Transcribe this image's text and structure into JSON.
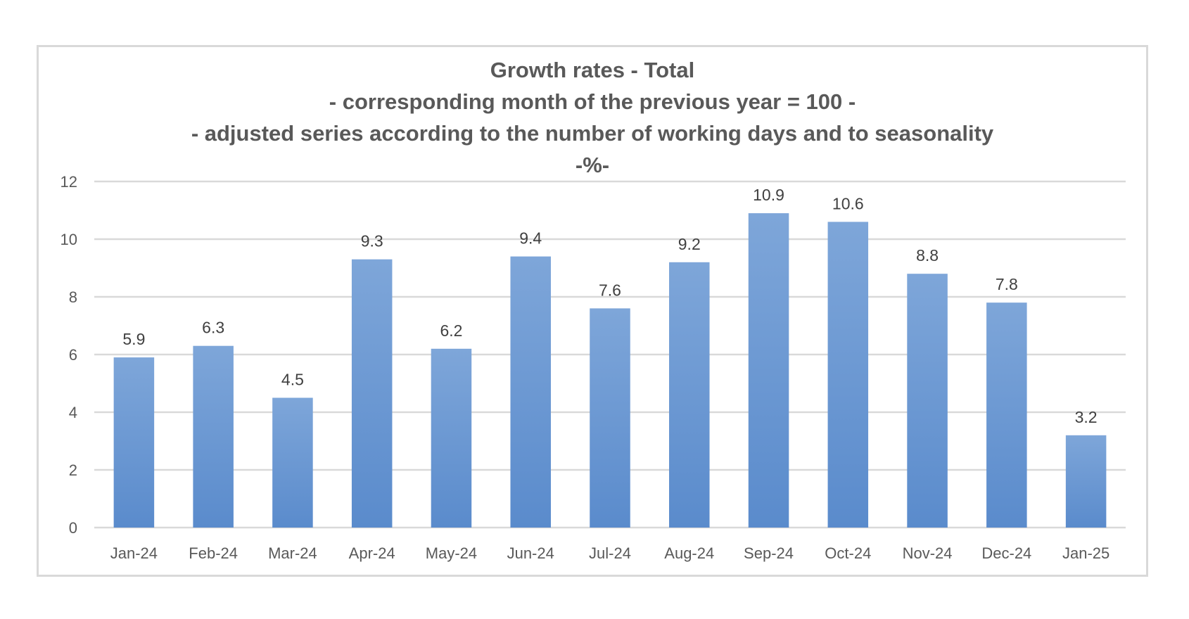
{
  "chart_data": {
    "type": "bar",
    "title": "Growth rates - Total",
    "subtitle_lines": [
      "- corresponding month of the previous year = 100 -",
      "- adjusted series according to the number of working days and to seasonality",
      "-%-"
    ],
    "categories": [
      "Jan-24",
      "Feb-24",
      "Mar-24",
      "Apr-24",
      "May-24",
      "Jun-24",
      "Jul-24",
      "Aug-24",
      "Sep-24",
      "Oct-24",
      "Nov-24",
      "Dec-24",
      "Jan-25"
    ],
    "values": [
      5.9,
      6.3,
      4.5,
      9.3,
      6.2,
      9.4,
      7.6,
      9.2,
      10.9,
      10.6,
      8.8,
      7.8,
      3.2
    ],
    "data_labels": [
      "5.9",
      "6.3",
      "4.5",
      "9.3",
      "6.2",
      "9.4",
      "7.6",
      "9.2",
      "10.9",
      "10.6",
      "8.8",
      "7.8",
      "3.2"
    ],
    "yticks": [
      "0",
      "2",
      "4",
      "6",
      "8",
      "10",
      "12"
    ],
    "ylim": [
      0,
      12
    ],
    "grid": true,
    "legend": "none",
    "colors": {
      "bar_top": "#7ea6d9",
      "bar_bottom": "#5a8bcc",
      "grid": "#d9d9d9",
      "text": "#595959"
    }
  }
}
